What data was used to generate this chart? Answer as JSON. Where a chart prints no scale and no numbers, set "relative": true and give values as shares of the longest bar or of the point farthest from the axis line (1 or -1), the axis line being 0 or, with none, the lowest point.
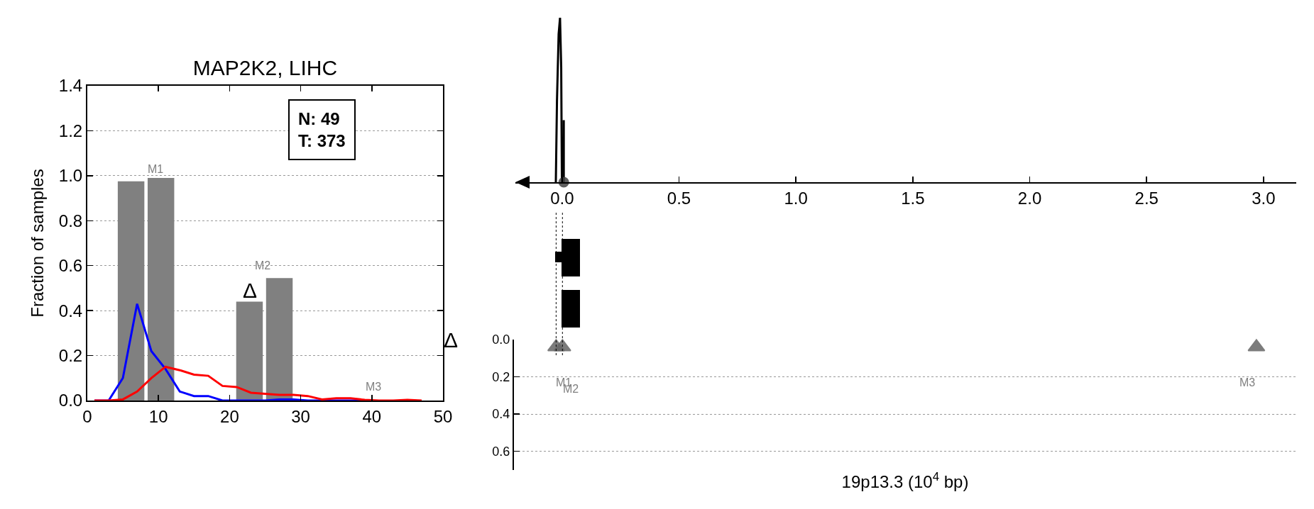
{
  "chart_data": [
    {
      "type": "bar",
      "title": "MAP2K2, LIHC",
      "ylabel": "Fraction of samples",
      "xlim": [
        0,
        50
      ],
      "xticks": [
        0,
        10,
        20,
        30,
        40,
        50
      ],
      "ylim": [
        0,
        1.4
      ],
      "yticks": [
        {
          "value": 0,
          "label": "0.0"
        },
        {
          "value": 0.2,
          "label": "0.2"
        },
        {
          "value": 0.4,
          "label": "0.4"
        },
        {
          "value": 0.6,
          "label": "0.6"
        },
        {
          "value": 0.8,
          "label": "0.8"
        },
        {
          "value": 1.0,
          "label": "1.0"
        },
        {
          "value": 1.2,
          "label": "1.2"
        },
        {
          "value": 1.4,
          "label": "1.4"
        }
      ],
      "grid": "y",
      "series": [
        {
          "color": "#808080",
          "x": [
            6.15,
            10.35,
            22.8,
            27.0
          ],
          "values": [
            0.975,
            0.99,
            0.44,
            0.545
          ]
        },
        {
          "type": "line",
          "color": "#0000ff",
          "x": [
            1,
            3,
            5,
            7,
            9,
            11,
            13,
            15,
            17,
            19,
            21,
            23,
            25,
            27,
            29,
            31,
            33,
            35,
            37,
            39
          ],
          "values": [
            0,
            0,
            0.1,
            0.43,
            0.22,
            0.14,
            0.04,
            0.02,
            0.02,
            0,
            0,
            0,
            0,
            0.005,
            0.005,
            0,
            0,
            0,
            0,
            0
          ]
        },
        {
          "type": "line",
          "color": "#ff0000",
          "x": [
            1,
            3,
            5,
            7,
            9,
            11,
            13,
            15,
            17,
            19,
            21,
            23,
            25,
            27,
            29,
            31,
            33,
            35,
            37,
            39,
            41,
            43,
            45,
            47
          ],
          "values": [
            0,
            0,
            0.005,
            0.04,
            0.1,
            0.15,
            0.135,
            0.115,
            0.11,
            0.065,
            0.06,
            0.035,
            0.03,
            0.025,
            0.025,
            0.02,
            0.005,
            0.01,
            0.01,
            0.003,
            0,
            0,
            0.003,
            0
          ]
        }
      ],
      "annotations": [
        "N: 49\nT: 373",
        "M1",
        "M2",
        "M3",
        "Δ"
      ]
    },
    {
      "type": "line",
      "relative": true,
      "xlim": [
        -0.2,
        3.14
      ],
      "xticks": [
        {
          "value": 0,
          "label": "0.0"
        },
        {
          "value": 0.5,
          "label": "0.5"
        },
        {
          "value": 1,
          "label": "1.0"
        },
        {
          "value": 1.5,
          "label": "1.5"
        },
        {
          "value": 2,
          "label": "2.0"
        },
        {
          "value": 2.5,
          "label": "2.5"
        },
        {
          "value": 3,
          "label": "3.0"
        }
      ],
      "tick_labels": "x",
      "series": [
        {
          "color": "#000000",
          "x": [
            -0.027,
            -0.022,
            -0.015,
            -0.009,
            -0.004,
            -0.001,
            0.007,
            0.007,
            0.007
          ],
          "values": [
            0,
            0.5,
            0.9,
            1,
            0.7,
            0,
            0,
            0.377,
            0
          ]
        },
        {
          "type": "scatter",
          "color": "#444444",
          "marker": "circle",
          "x": [
            0.007
          ],
          "values": [
            0
          ]
        }
      ]
    },
    {
      "type": "scatter",
      "xlabel": "19p13.3 (10$^{4}$ bp)",
      "ylabel": "Δ",
      "xlim": [
        -0.2,
        3.14
      ],
      "ylim": [
        0.7,
        0
      ],
      "yticks": [
        {
          "value": 0,
          "label": "0.0"
        },
        {
          "value": 0.2,
          "label": "0.2"
        },
        {
          "value": 0.4,
          "label": "0.4"
        },
        {
          "value": 0.6,
          "label": "0.6"
        }
      ],
      "grid": "y",
      "tick_labels": "y",
      "marker": "triangle",
      "series": [
        {
          "color": "#666666",
          "x": [
            -0.02,
            0.007,
            2.97
          ],
          "values": [
            0.04,
            0.04,
            0.04
          ]
        }
      ],
      "ref_lines": [
        {
          "axis": "x",
          "value": -0.02,
          "line_style": "dotted"
        },
        {
          "axis": "x",
          "value": 0.007,
          "line_style": "dotted"
        }
      ],
      "annotations": [
        "M1",
        "M2",
        "M3"
      ]
    }
  ]
}
